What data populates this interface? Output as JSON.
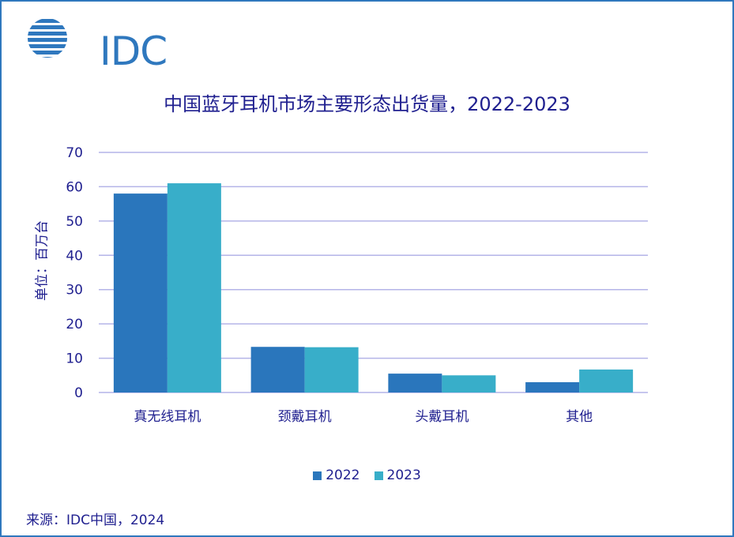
{
  "logo": {
    "text": "IDC",
    "icon": "idc-globe-logo-icon"
  },
  "colors": {
    "series_2022": "#2a76bc",
    "series_2023": "#38aec9",
    "grid": "#b4b4e8",
    "text": "#1f1f8f",
    "frame": "#2f78be"
  },
  "chart_data": {
    "type": "bar",
    "title": "中国蓝牙耳机市场主要形态出货量，2022-2023",
    "ylabel": "单位：百万台",
    "xlabel": "",
    "categories": [
      "真无线耳机",
      "颈戴耳机",
      "头戴耳机",
      "其他"
    ],
    "series": [
      {
        "name": "2022",
        "values": [
          58,
          13.3,
          5.5,
          3
        ]
      },
      {
        "name": "2023",
        "values": [
          61,
          13.2,
          5,
          6.7
        ]
      }
    ],
    "ylim": [
      0,
      70
    ],
    "yticks": [
      0,
      10,
      20,
      30,
      40,
      50,
      60,
      70
    ],
    "grid": true,
    "legend": "bottom"
  },
  "source": "来源：IDC中国，2024"
}
